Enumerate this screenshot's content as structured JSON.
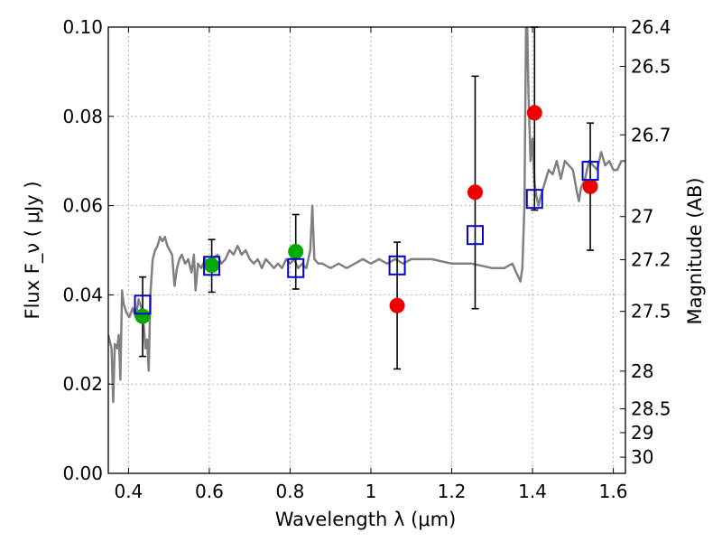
{
  "chart_data": {
    "type": "scatter",
    "xlabel": "Wavelength  λ (μm)",
    "ylabel": "Flux  F_ν  ( μJy )",
    "y2label": "Magnitude (AB)",
    "xlim": [
      0.35,
      1.63
    ],
    "ylim": [
      0.0,
      0.1
    ],
    "grid": true,
    "x_ticks": [
      {
        "value": 0.4,
        "label": "0.4"
      },
      {
        "value": 0.6,
        "label": "0.6"
      },
      {
        "value": 0.8,
        "label": "0.8"
      },
      {
        "value": 1.0,
        "label": "1"
      },
      {
        "value": 1.2,
        "label": "1.2"
      },
      {
        "value": 1.4,
        "label": "1.4"
      },
      {
        "value": 1.6,
        "label": "1.6"
      }
    ],
    "y_ticks": [
      {
        "value": 0.0,
        "label": "0.00"
      },
      {
        "value": 0.02,
        "label": "0.02"
      },
      {
        "value": 0.04,
        "label": "0.04"
      },
      {
        "value": 0.06,
        "label": "0.06"
      },
      {
        "value": 0.08,
        "label": "0.08"
      },
      {
        "value": 0.1,
        "label": "0.10"
      }
    ],
    "y2_ticks": [
      {
        "value": 26.4,
        "label": "26.4"
      },
      {
        "value": 26.5,
        "label": "26.5"
      },
      {
        "value": 26.7,
        "label": "26.7"
      },
      {
        "value": 27.0,
        "label": "27"
      },
      {
        "value": 27.2,
        "label": "27.2"
      },
      {
        "value": 27.5,
        "label": "27.5"
      },
      {
        "value": 28.0,
        "label": "28"
      },
      {
        "value": 28.5,
        "label": "28.5"
      },
      {
        "value": 29.0,
        "label": "29"
      },
      {
        "value": 30.0,
        "label": "30"
      }
    ],
    "series": [
      {
        "kind": "line",
        "color": "#808080",
        "points": [
          [
            0.35,
            0.031
          ],
          [
            0.358,
            0.028
          ],
          [
            0.362,
            0.016
          ],
          [
            0.366,
            0.029
          ],
          [
            0.372,
            0.028
          ],
          [
            0.376,
            0.031
          ],
          [
            0.38,
            0.021
          ],
          [
            0.384,
            0.041
          ],
          [
            0.388,
            0.038
          ],
          [
            0.395,
            0.036
          ],
          [
            0.402,
            0.035
          ],
          [
            0.41,
            0.037
          ],
          [
            0.418,
            0.035
          ],
          [
            0.425,
            0.039
          ],
          [
            0.432,
            0.037
          ],
          [
            0.438,
            0.033
          ],
          [
            0.442,
            0.028
          ],
          [
            0.446,
            0.03
          ],
          [
            0.45,
            0.023
          ],
          [
            0.454,
            0.04
          ],
          [
            0.46,
            0.048
          ],
          [
            0.466,
            0.05
          ],
          [
            0.472,
            0.051
          ],
          [
            0.478,
            0.053
          ],
          [
            0.484,
            0.052
          ],
          [
            0.49,
            0.053
          ],
          [
            0.496,
            0.051
          ],
          [
            0.502,
            0.05
          ],
          [
            0.508,
            0.049
          ],
          [
            0.514,
            0.042
          ],
          [
            0.52,
            0.046
          ],
          [
            0.526,
            0.048
          ],
          [
            0.532,
            0.049
          ],
          [
            0.54,
            0.047
          ],
          [
            0.548,
            0.048
          ],
          [
            0.556,
            0.045
          ],
          [
            0.562,
            0.049
          ],
          [
            0.566,
            0.041
          ],
          [
            0.572,
            0.047
          ],
          [
            0.58,
            0.046
          ],
          [
            0.59,
            0.048
          ],
          [
            0.6,
            0.047
          ],
          [
            0.61,
            0.048
          ],
          [
            0.62,
            0.049
          ],
          [
            0.63,
            0.047
          ],
          [
            0.64,
            0.048
          ],
          [
            0.65,
            0.05
          ],
          [
            0.66,
            0.049
          ],
          [
            0.67,
            0.051
          ],
          [
            0.68,
            0.049
          ],
          [
            0.69,
            0.05
          ],
          [
            0.7,
            0.048
          ],
          [
            0.71,
            0.047
          ],
          [
            0.72,
            0.048
          ],
          [
            0.73,
            0.046
          ],
          [
            0.74,
            0.048
          ],
          [
            0.75,
            0.047
          ],
          [
            0.76,
            0.046
          ],
          [
            0.77,
            0.047
          ],
          [
            0.78,
            0.046
          ],
          [
            0.79,
            0.048
          ],
          [
            0.8,
            0.047
          ],
          [
            0.81,
            0.048
          ],
          [
            0.82,
            0.046
          ],
          [
            0.83,
            0.047
          ],
          [
            0.84,
            0.046
          ],
          [
            0.85,
            0.05
          ],
          [
            0.855,
            0.06
          ],
          [
            0.86,
            0.048
          ],
          [
            0.87,
            0.047
          ],
          [
            0.88,
            0.047
          ],
          [
            0.9,
            0.046
          ],
          [
            0.92,
            0.047
          ],
          [
            0.94,
            0.046
          ],
          [
            0.96,
            0.047
          ],
          [
            0.98,
            0.048
          ],
          [
            1.0,
            0.047
          ],
          [
            1.02,
            0.048
          ],
          [
            1.04,
            0.047
          ],
          [
            1.06,
            0.048
          ],
          [
            1.08,
            0.047
          ],
          [
            1.1,
            0.048
          ],
          [
            1.15,
            0.048
          ],
          [
            1.2,
            0.047
          ],
          [
            1.25,
            0.047
          ],
          [
            1.3,
            0.046
          ],
          [
            1.33,
            0.046
          ],
          [
            1.35,
            0.047
          ],
          [
            1.36,
            0.045
          ],
          [
            1.37,
            0.043
          ],
          [
            1.375,
            0.046
          ],
          [
            1.38,
            0.06
          ],
          [
            1.385,
            0.11
          ],
          [
            1.39,
            0.085
          ],
          [
            1.395,
            0.07
          ],
          [
            1.4,
            0.075
          ],
          [
            1.405,
            0.065
          ],
          [
            1.41,
            0.062
          ],
          [
            1.415,
            0.06
          ],
          [
            1.42,
            0.062
          ],
          [
            1.43,
            0.065
          ],
          [
            1.44,
            0.068
          ],
          [
            1.45,
            0.067
          ],
          [
            1.46,
            0.07
          ],
          [
            1.47,
            0.066
          ],
          [
            1.48,
            0.07
          ],
          [
            1.49,
            0.069
          ],
          [
            1.5,
            0.068
          ],
          [
            1.51,
            0.063
          ],
          [
            1.515,
            0.061
          ],
          [
            1.52,
            0.064
          ],
          [
            1.53,
            0.066
          ],
          [
            1.54,
            0.07
          ],
          [
            1.55,
            0.069
          ],
          [
            1.56,
            0.068
          ],
          [
            1.57,
            0.072
          ],
          [
            1.58,
            0.069
          ],
          [
            1.59,
            0.07
          ],
          [
            1.6,
            0.068
          ],
          [
            1.61,
            0.068
          ],
          [
            1.62,
            0.07
          ],
          [
            1.63,
            0.07
          ]
        ]
      },
      {
        "kind": "errorbar",
        "color": "#000000",
        "points": [
          {
            "x": 0.435,
            "y": 0.0352,
            "lo": 0.0262,
            "hi": 0.044
          },
          {
            "x": 0.606,
            "y": 0.0466,
            "lo": 0.0406,
            "hi": 0.0524
          },
          {
            "x": 0.814,
            "y": 0.0497,
            "lo": 0.0413,
            "hi": 0.058
          },
          {
            "x": 1.065,
            "y": 0.0376,
            "lo": 0.0234,
            "hi": 0.0518
          },
          {
            "x": 1.258,
            "y": 0.063,
            "lo": 0.0369,
            "hi": 0.089
          },
          {
            "x": 1.405,
            "y": 0.0808,
            "lo": 0.059,
            "hi": 0.1
          },
          {
            "x": 1.543,
            "y": 0.0643,
            "lo": 0.05,
            "hi": 0.0785
          }
        ]
      },
      {
        "kind": "marker-circle",
        "color": "#00aa00",
        "points": [
          [
            0.435,
            0.0352
          ],
          [
            0.606,
            0.0466
          ],
          [
            0.814,
            0.0497
          ]
        ]
      },
      {
        "kind": "marker-circle",
        "color": "#ee0000",
        "points": [
          [
            1.065,
            0.0376
          ],
          [
            1.258,
            0.063
          ],
          [
            1.405,
            0.0808
          ],
          [
            1.543,
            0.0643
          ]
        ]
      },
      {
        "kind": "marker-square",
        "color": "#0000cc",
        "points": [
          [
            0.435,
            0.0378
          ],
          [
            0.606,
            0.0465
          ],
          [
            0.814,
            0.046
          ],
          [
            1.065,
            0.0466
          ],
          [
            1.258,
            0.0534
          ],
          [
            1.405,
            0.0615
          ],
          [
            1.543,
            0.0678
          ]
        ]
      }
    ]
  }
}
